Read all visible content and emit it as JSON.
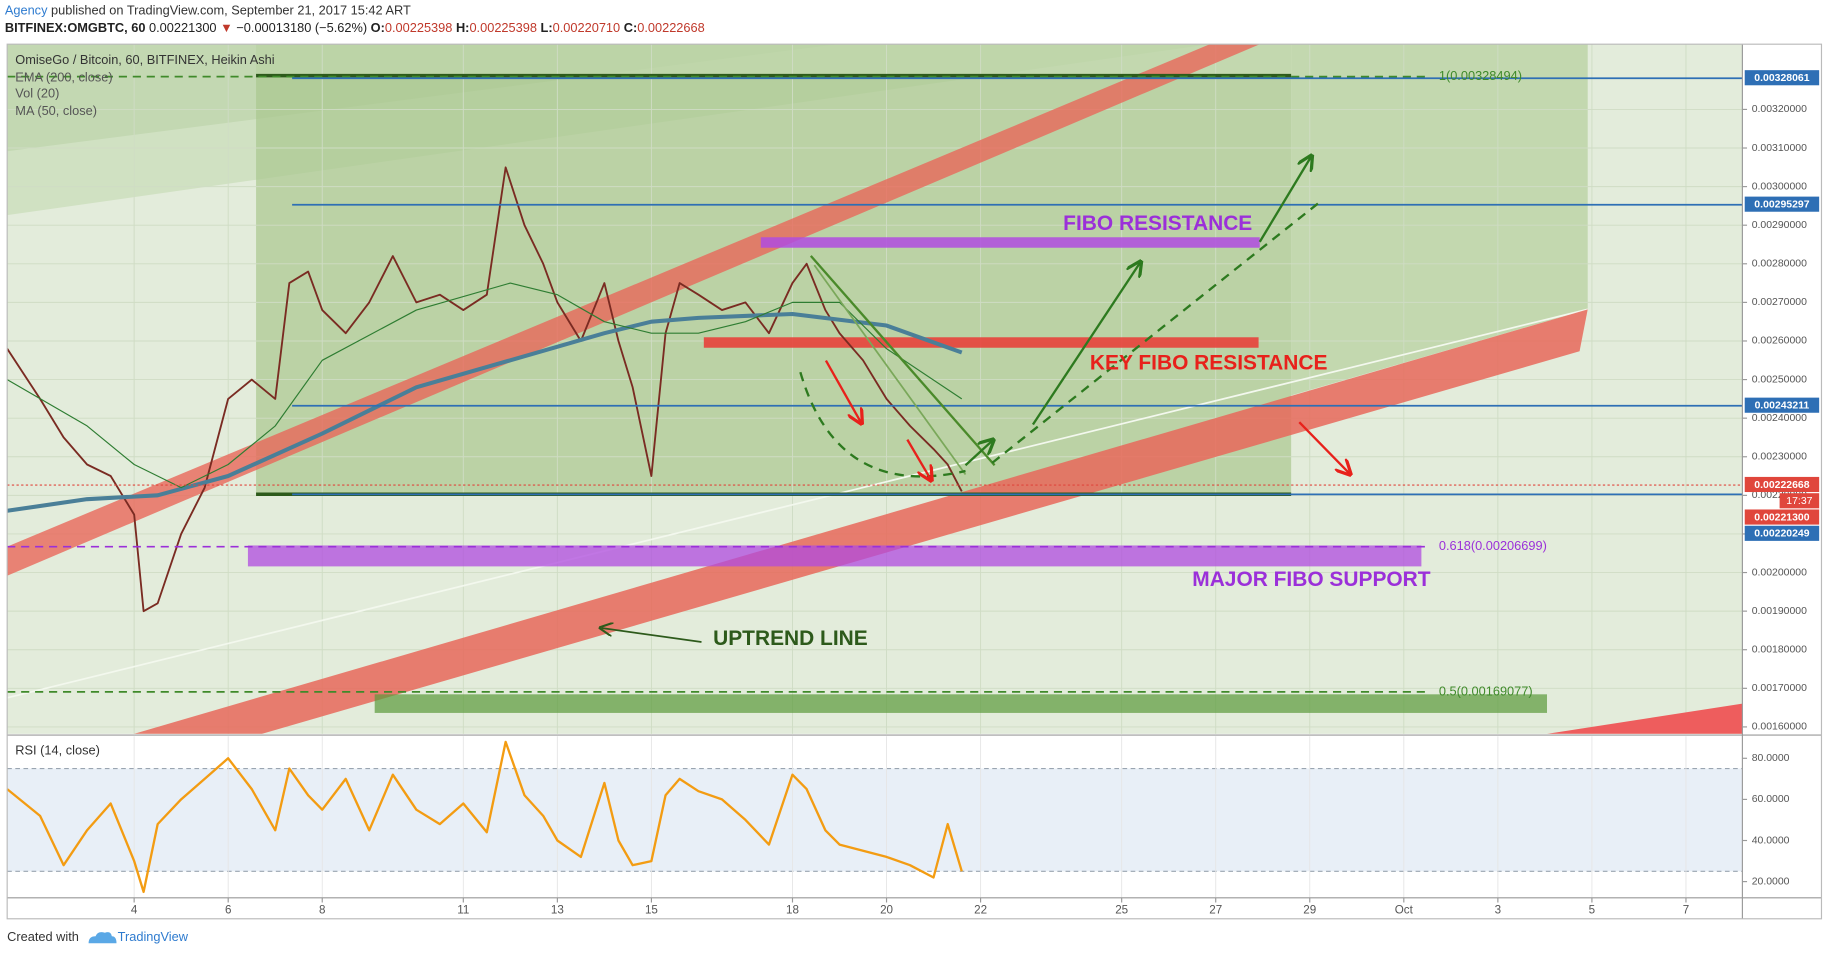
{
  "header": {
    "author": "Agency",
    "published": "published on TradingView.com, September 21, 2017 15:42 ART",
    "symbol": "BITFINEX:OMGBTC, 60",
    "last": "0.00221300",
    "arrow": "▼",
    "change": "−0.00013180 (−5.62%)",
    "o_label": "O:",
    "open": "0.00225398",
    "h_label": "H:",
    "high": "0.00225398",
    "l_label": "L:",
    "low": "0.00220710",
    "c_label": "C:",
    "close": "0.00222668"
  },
  "chart_data": [
    {
      "type": "line",
      "title": "OmiseGo / Bitcoin, 60, BITFINEX, Heikin Ashi",
      "volume_label": "Vol (20)",
      "xlim": [
        1.3,
        38.2
      ],
      "ylim": [
        0.001582,
        0.003369
      ],
      "xticks": [
        4,
        6,
        8,
        11,
        13,
        15,
        18,
        20,
        22,
        25,
        27,
        29,
        {
          "value": 31,
          "label": "Oct"
        },
        {
          "value": 33,
          "label": "3"
        },
        {
          "value": 35,
          "label": "5"
        },
        {
          "value": 37,
          "label": "7"
        }
      ],
      "yticks": [
        {
          "value": 0.0016,
          "label": "0.00160000"
        },
        {
          "value": 0.0017,
          "label": "0.00170000"
        },
        {
          "value": 0.0018,
          "label": "0.00180000"
        },
        {
          "value": 0.0019,
          "label": "0.00190000"
        },
        {
          "value": 0.002,
          "label": "0.00200000"
        },
        {
          "value": 0.0021,
          "label": "0.00210000"
        },
        {
          "value": 0.0022,
          "label": "0.00220000"
        },
        {
          "value": 0.0023,
          "label": "0.00230000"
        },
        {
          "value": 0.0024,
          "label": "0.00240000"
        },
        {
          "value": 0.0025,
          "label": "0.00250000"
        },
        {
          "value": 0.0026,
          "label": "0.00260000"
        },
        {
          "value": 0.0027,
          "label": "0.00270000"
        },
        {
          "value": 0.0028,
          "label": "0.00280000"
        },
        {
          "value": 0.0029,
          "label": "0.00290000"
        },
        {
          "value": 0.003,
          "label": "0.00300000"
        },
        {
          "value": 0.0031,
          "label": "0.00310000"
        },
        {
          "value": 0.0032,
          "label": "0.00320000"
        }
      ],
      "grid": true,
      "series": [
        {
          "color": "#7a2b22",
          "x": [
            1.3,
            2,
            2.5,
            3,
            3.5,
            4,
            4.2,
            4.5,
            5,
            5.5,
            6,
            6.5,
            7,
            7.3,
            7.7,
            8,
            8.5,
            9,
            9.5,
            10,
            10.5,
            11,
            11.5,
            11.9,
            12.3,
            12.7,
            13,
            13.5,
            14,
            14.3,
            14.6,
            15,
            15.3,
            15.6,
            16,
            16.5,
            17,
            17.5,
            18,
            18.3,
            18.7,
            19,
            19.5,
            20,
            20.5,
            21,
            21.3,
            21.6
          ],
          "values": [
            0.00258,
            0.00245,
            0.00235,
            0.00228,
            0.00225,
            0.00215,
            0.0019,
            0.00192,
            0.0021,
            0.00222,
            0.00245,
            0.0025,
            0.00245,
            0.00275,
            0.00278,
            0.00268,
            0.00262,
            0.0027,
            0.00282,
            0.0027,
            0.00272,
            0.00268,
            0.00272,
            0.00305,
            0.0029,
            0.0028,
            0.0027,
            0.0026,
            0.00275,
            0.0026,
            0.00248,
            0.00225,
            0.00262,
            0.00275,
            0.00272,
            0.00268,
            0.0027,
            0.00262,
            0.00275,
            0.0028,
            0.00268,
            0.00262,
            0.00255,
            0.00245,
            0.00238,
            0.00232,
            0.00228,
            0.00221
          ]
        },
        {
          "name": "EMA (200, close)",
          "color": "#4a7f98",
          "x": [
            1.3,
            3,
            4.5,
            6,
            8,
            10,
            12,
            14,
            15,
            16,
            18,
            20,
            21.6
          ],
          "values": [
            0.00216,
            0.00219,
            0.0022,
            0.00225,
            0.00236,
            0.00248,
            0.00255,
            0.00262,
            0.00265,
            0.00266,
            0.00267,
            0.00264,
            0.00257
          ]
        },
        {
          "name": "MA (50, close)",
          "color": "#2e7d32",
          "x": [
            1.3,
            3,
            4,
            5,
            6,
            7,
            8,
            10,
            12,
            13,
            14,
            15,
            16,
            17,
            18,
            19,
            20,
            21.6
          ],
          "values": [
            0.0025,
            0.00238,
            0.00228,
            0.00222,
            0.00228,
            0.00238,
            0.00255,
            0.00268,
            0.00275,
            0.00272,
            0.00265,
            0.00262,
            0.00262,
            0.00265,
            0.0027,
            0.0027,
            0.00258,
            0.00245
          ]
        }
      ],
      "levels": [
        {
          "value": 0.00328061,
          "label": "0.00328061",
          "color": "#2e6fb5",
          "line": true
        },
        {
          "value": 0.00295297,
          "label": "0.00295297",
          "color": "#2e6fb5",
          "line": true
        },
        {
          "value": 0.00243211,
          "label": "0.00243211",
          "color": "#2e6fb5",
          "line": true
        },
        {
          "value": 0.00222668,
          "label": "0.00222668",
          "color": "#e0463c",
          "line": true
        },
        {
          "value": 0.002213,
          "label": "0.00221300",
          "color": "#e0463c",
          "line": false,
          "countdown": "17:37"
        },
        {
          "value": 0.00220249,
          "label": "0.00220249",
          "color": "#2e6fb5",
          "line": true
        }
      ],
      "fibs": [
        {
          "value": 0.00328494,
          "label": "1(0.00328494)",
          "color": "#3f8a2a"
        },
        {
          "value": 0.00206699,
          "label": "0.618(0.00206699)",
          "color": "#9b30d9"
        },
        {
          "value": 0.00169077,
          "label": "0.5(0.00169077)",
          "color": "#3f8a2a"
        }
      ],
      "annotations": [
        "FIBO RESISTANCE",
        "KEY FIBO RESISTANCE",
        "MAJOR FIBO SUPPORT",
        "UPTREND LINE"
      ]
    },
    {
      "type": "line",
      "title": "RSI (14, close)",
      "xlim": [
        1.3,
        38.2
      ],
      "ylim": [
        12.1,
        90.75
      ],
      "yticks": [
        {
          "value": 20,
          "label": "20.0000"
        },
        {
          "value": 40,
          "label": "40.0000"
        },
        {
          "value": 60,
          "label": "60.0000"
        },
        {
          "value": 80,
          "label": "80.0000"
        }
      ],
      "bands": [
        75,
        25
      ],
      "series": [
        {
          "color": "#f39c12",
          "x": [
            1.3,
            2,
            2.5,
            3,
            3.5,
            4,
            4.2,
            4.5,
            5,
            5.5,
            6,
            6.5,
            7,
            7.3,
            7.7,
            8,
            8.5,
            9,
            9.5,
            10,
            10.5,
            11,
            11.5,
            11.9,
            12.3,
            12.7,
            13,
            13.5,
            14,
            14.3,
            14.6,
            15,
            15.3,
            15.6,
            16,
            16.5,
            17,
            17.5,
            18,
            18.3,
            18.7,
            19,
            19.5,
            20,
            20.5,
            21,
            21.3,
            21.6
          ],
          "values": [
            65,
            52,
            28,
            45,
            58,
            30,
            15,
            48,
            60,
            70,
            80,
            65,
            45,
            75,
            62,
            55,
            70,
            45,
            72,
            55,
            48,
            58,
            44,
            88,
            62,
            52,
            40,
            32,
            68,
            40,
            28,
            30,
            62,
            70,
            64,
            60,
            50,
            38,
            72,
            65,
            45,
            38,
            35,
            32,
            28,
            22,
            48,
            25
          ]
        }
      ]
    }
  ],
  "footer": {
    "created": "Created with",
    "brand": "TradingView"
  }
}
